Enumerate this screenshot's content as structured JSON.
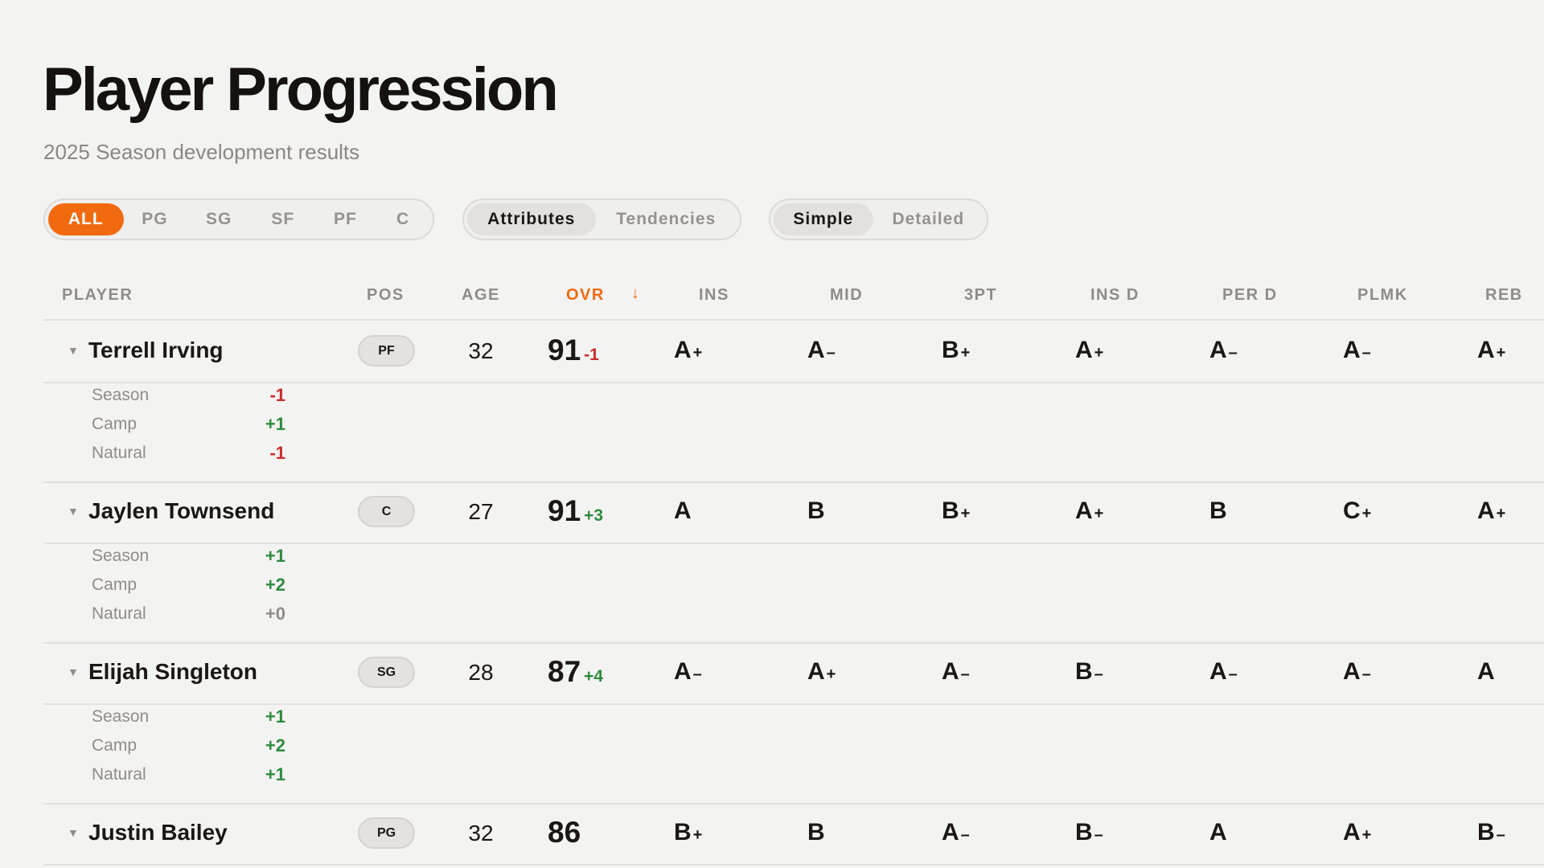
{
  "header": {
    "title": "Player Progression",
    "subtitle": "2025 Season development results"
  },
  "filters": {
    "positions": [
      "ALL",
      "PG",
      "SG",
      "SF",
      "PF",
      "C"
    ],
    "positions_active": "ALL",
    "view": [
      "Attributes",
      "Tendencies"
    ],
    "view_active": "Attributes",
    "mode": [
      "Simple",
      "Detailed"
    ],
    "mode_active": "Simple"
  },
  "colors": {
    "accent": "#f26a0f",
    "positive": "#2e8b3e",
    "negative": "#cc2b2b"
  },
  "table": {
    "columns": [
      "PLAYER",
      "POS",
      "AGE",
      "OVR",
      "INS",
      "MID",
      "3PT",
      "INS D",
      "PER D",
      "PLMK",
      "REB"
    ],
    "sorted_column": "OVR",
    "sort_direction": "descending",
    "rows": [
      {
        "name": "Terrell Irving",
        "pos": "PF",
        "age": "32",
        "ovr": "91",
        "ovr_delta": "-1",
        "grades": [
          "A+",
          "A-",
          "B+",
          "A+",
          "A-",
          "A-",
          "A+"
        ],
        "breakdown": [
          {
            "label": "Season",
            "value": "-1"
          },
          {
            "label": "Camp",
            "value": "+1"
          },
          {
            "label": "Natural",
            "value": "-1"
          }
        ]
      },
      {
        "name": "Jaylen Townsend",
        "pos": "C",
        "age": "27",
        "ovr": "91",
        "ovr_delta": "+3",
        "grades": [
          "A",
          "B",
          "B+",
          "A+",
          "B",
          "C+",
          "A+"
        ],
        "breakdown": [
          {
            "label": "Season",
            "value": "+1"
          },
          {
            "label": "Camp",
            "value": "+2"
          },
          {
            "label": "Natural",
            "value": "+0"
          }
        ]
      },
      {
        "name": "Elijah Singleton",
        "pos": "SG",
        "age": "28",
        "ovr": "87",
        "ovr_delta": "+4",
        "grades": [
          "A-",
          "A+",
          "A-",
          "B-",
          "A-",
          "A-",
          "A"
        ],
        "breakdown": [
          {
            "label": "Season",
            "value": "+1"
          },
          {
            "label": "Camp",
            "value": "+2"
          },
          {
            "label": "Natural",
            "value": "+1"
          }
        ]
      },
      {
        "name": "Justin Bailey",
        "pos": "PG",
        "age": "32",
        "ovr": "86",
        "ovr_delta": "",
        "grades": [
          "B+",
          "B",
          "A-",
          "B-",
          "A",
          "A+",
          "B-"
        ],
        "breakdown": []
      }
    ]
  }
}
